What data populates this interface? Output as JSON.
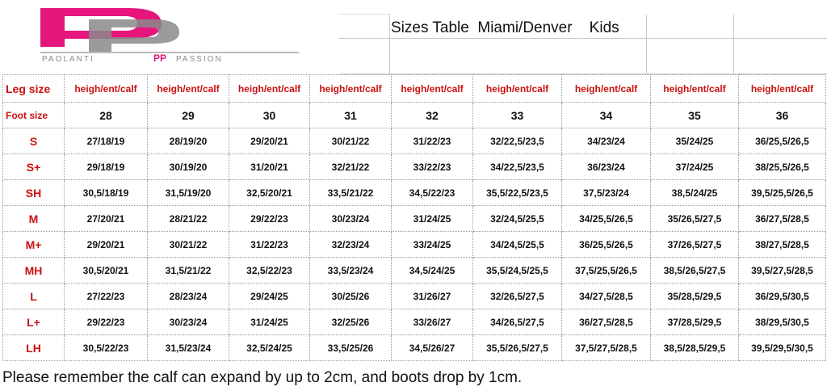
{
  "logo": {
    "text_left": "PAOLANTI",
    "text_right": "PASSION",
    "letters": "PP"
  },
  "title": "Sizes Table  Miami/Denver    Kids",
  "table": {
    "leg_label": "Leg size",
    "foot_label": "Foot size",
    "header_values": [
      "heigh/ent/calf",
      "heigh/ent/calf",
      "heigh/ent/calf",
      "heigh/ent/calf",
      "heigh/ent/calf",
      "heigh/ent/calf",
      "heigh/ent/calf",
      "heigh/ent/calf",
      "heigh/ent/calf"
    ],
    "foot_sizes": [
      "28",
      "29",
      "30",
      "31",
      "32",
      "33",
      "34",
      "35",
      "36"
    ],
    "rows": [
      {
        "size": "S",
        "values": [
          "27/18/19",
          "28/19/20",
          "29/20/21",
          "30/21/22",
          "31/22/23",
          "32/22,5/23,5",
          "34/23/24",
          "35/24/25",
          "36/25,5/26,5"
        ]
      },
      {
        "size": "S+",
        "values": [
          "29/18/19",
          "30/19/20",
          "31/20/21",
          "32/21/22",
          "33/22/23",
          "34/22,5/23,5",
          "36/23/24",
          "37/24/25",
          "38/25,5/26,5"
        ]
      },
      {
        "size": "SH",
        "values": [
          "30,5/18/19",
          "31,5/19/20",
          "32,5/20/21",
          "33,5/21/22",
          "34,5/22/23",
          "35,5/22,5/23,5",
          "37,5/23/24",
          "38,5/24/25",
          "39,5/25,5/26,5"
        ]
      },
      {
        "size": "M",
        "values": [
          "27/20/21",
          "28/21/22",
          "29/22/23",
          "30/23/24",
          "31/24/25",
          "32/24,5/25,5",
          "34/25,5/26,5",
          "35/26,5/27,5",
          "36/27,5/28,5"
        ]
      },
      {
        "size": "M+",
        "values": [
          "29/20/21",
          "30/21/22",
          "31/22/23",
          "32/23/24",
          "33/24/25",
          "34/24,5/25,5",
          "36/25,5/26,5",
          "37/26,5/27,5",
          "38/27,5/28,5"
        ]
      },
      {
        "size": "MH",
        "values": [
          "30,5/20/21",
          "31,5/21/22",
          "32,5/22/23",
          "33,5/23/24",
          "34,5/24/25",
          "35,5/24,5/25,5",
          "37,5/25,5/26,5",
          "38,5/26,5/27,5",
          "39,5/27,5/28,5"
        ]
      },
      {
        "size": "L",
        "values": [
          "27/22/23",
          "28/23/24",
          "29/24/25",
          "30/25/26",
          "31/26/27",
          "32/26,5/27,5",
          "34/27,5/28,5",
          "35/28,5/29,5",
          "36/29,5/30,5"
        ]
      },
      {
        "size": "L+",
        "values": [
          "29/22/23",
          "30/23/24",
          "31/24/25",
          "32/25/26",
          "33/26/27",
          "34/26,5/27,5",
          "36/27,5/28,5",
          "37/28,5/29,5",
          "38/29,5/30,5"
        ]
      },
      {
        "size": "LH",
        "values": [
          "30,5/22/23",
          "31,5/23/24",
          "32,5/24/25",
          "33,5/25/26",
          "34,5/26/27",
          "35,5/26,5/27,5",
          "37,5/27,5/28,5",
          "38,5/28,5/29,5",
          "39,5/29,5/30,5"
        ]
      }
    ]
  },
  "note": "Please remember the calf can expand by up to 2cm, and boots drop by 1cm.",
  "colors": {
    "accent_red": "#cc1010",
    "logo_pink": "#e6167d",
    "logo_gray": "#8a8a8a"
  }
}
